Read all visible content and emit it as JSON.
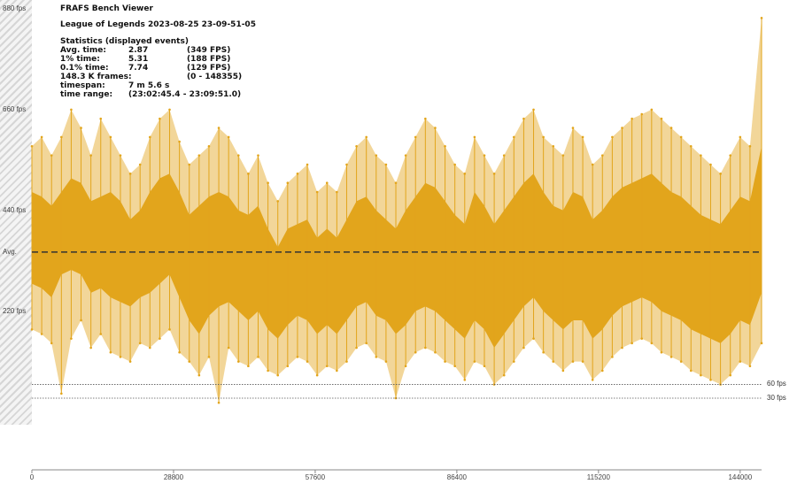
{
  "header": {
    "app_title": "FRAFS Bench Viewer",
    "session_title": "League of Legends 2023-08-25 23-09-51-05",
    "stats_heading": "Statistics (displayed events)"
  },
  "stats": {
    "avg": {
      "label": "Avg. time:",
      "value": "2.87",
      "fps": "(349 FPS)"
    },
    "p1": {
      "label": "1% time:",
      "value": "5.31",
      "fps": "(188 FPS)"
    },
    "p01": {
      "label": "0.1% time:",
      "value": "7.74",
      "fps": "(129 FPS)"
    },
    "frames": {
      "label": "148.3 K frames:",
      "fps": "(0 - 148355)"
    },
    "timespan": {
      "label": "timespan:",
      "value": "7 m 5.6 s"
    },
    "timerange": {
      "label": "time range:",
      "value": "(23:02:45.4 - 23:09:51.0)"
    }
  },
  "reference_lines": {
    "avg_label": "Avg.",
    "fps60_label": "60 fps",
    "fps30_label": "30 fps"
  },
  "colors": {
    "series": "#e2a51c",
    "avg_line": "#333333",
    "scale_bar": "#d6d6d6"
  },
  "chart_data": {
    "type": "line",
    "x_tick_labels": [
      "0",
      "28800",
      "57600",
      "86400",
      "115200",
      "144000"
    ],
    "x_ticks": [
      0,
      28800,
      57600,
      86400,
      115200,
      144000
    ],
    "y_tick_labels": [
      "880 fps",
      "660 fps",
      "440 fps",
      "220 fps"
    ],
    "y_ticks": [
      880,
      660,
      440,
      220
    ],
    "xlim": [
      0,
      148355
    ],
    "ylim": [
      0,
      880
    ],
    "avg_fps": 349,
    "series": [
      {
        "x": [
          0,
          2000,
          4000,
          6000,
          8000,
          10000,
          12000,
          14000,
          16000,
          18000,
          20000,
          22000,
          24000,
          26000,
          28000,
          30000,
          32000,
          34000,
          36000,
          38000,
          40000,
          42000,
          44000,
          46000,
          48000,
          50000,
          52000,
          54000,
          56000,
          58000,
          60000,
          62000,
          64000,
          66000,
          68000,
          70000,
          72000,
          74000,
          76000,
          78000,
          80000,
          82000,
          84000,
          86000,
          88000,
          90000,
          92000,
          94000,
          96000,
          98000,
          100000,
          102000,
          104000,
          106000,
          108000,
          110000,
          112000,
          114000,
          116000,
          118000,
          120000,
          122000,
          124000,
          126000,
          128000,
          130000,
          132000,
          134000,
          136000,
          138000,
          140000,
          142000,
          144000,
          146000,
          148355
        ],
        "max_fps": [
          580,
          600,
          560,
          600,
          660,
          620,
          560,
          640,
          600,
          560,
          520,
          540,
          600,
          640,
          660,
          590,
          540,
          560,
          580,
          620,
          600,
          560,
          520,
          560,
          500,
          460,
          500,
          520,
          540,
          480,
          500,
          480,
          540,
          580,
          600,
          560,
          540,
          500,
          560,
          600,
          640,
          620,
          580,
          540,
          520,
          600,
          560,
          520,
          560,
          600,
          640,
          660,
          600,
          580,
          560,
          620,
          600,
          540,
          560,
          600,
          620,
          640,
          650,
          660,
          640,
          620,
          600,
          580,
          560,
          540,
          520,
          560,
          600,
          580,
          860
        ],
        "upper_fps": [
          480,
          470,
          450,
          480,
          510,
          500,
          460,
          470,
          480,
          460,
          420,
          440,
          480,
          510,
          520,
          480,
          430,
          450,
          470,
          480,
          470,
          440,
          430,
          450,
          400,
          360,
          400,
          410,
          420,
          380,
          400,
          380,
          420,
          460,
          470,
          440,
          420,
          400,
          440,
          470,
          500,
          490,
          460,
          430,
          410,
          480,
          450,
          410,
          440,
          470,
          500,
          520,
          480,
          450,
          440,
          480,
          470,
          420,
          440,
          470,
          490,
          500,
          510,
          520,
          500,
          480,
          470,
          450,
          430,
          420,
          410,
          440,
          470,
          460,
          580
        ],
        "lower_fps": [
          280,
          270,
          250,
          300,
          310,
          300,
          260,
          270,
          250,
          240,
          230,
          250,
          260,
          280,
          300,
          250,
          200,
          170,
          210,
          230,
          240,
          220,
          200,
          220,
          180,
          160,
          190,
          210,
          200,
          170,
          190,
          170,
          200,
          230,
          240,
          210,
          200,
          170,
          190,
          220,
          230,
          220,
          200,
          180,
          160,
          200,
          180,
          140,
          170,
          200,
          230,
          250,
          220,
          200,
          180,
          200,
          200,
          160,
          180,
          210,
          230,
          240,
          250,
          240,
          220,
          210,
          200,
          180,
          170,
          160,
          150,
          170,
          200,
          190,
          260
        ],
        "min_fps": [
          180,
          170,
          150,
          40,
          160,
          200,
          140,
          170,
          130,
          120,
          110,
          150,
          140,
          160,
          180,
          130,
          110,
          80,
          120,
          20,
          140,
          110,
          100,
          120,
          90,
          80,
          100,
          120,
          110,
          80,
          100,
          90,
          110,
          140,
          150,
          120,
          110,
          30,
          100,
          130,
          140,
          130,
          110,
          100,
          70,
          110,
          100,
          60,
          80,
          110,
          140,
          160,
          130,
          110,
          90,
          110,
          110,
          70,
          90,
          120,
          140,
          150,
          160,
          150,
          130,
          120,
          110,
          90,
          80,
          70,
          60,
          80,
          110,
          100,
          150
        ]
      }
    ]
  }
}
